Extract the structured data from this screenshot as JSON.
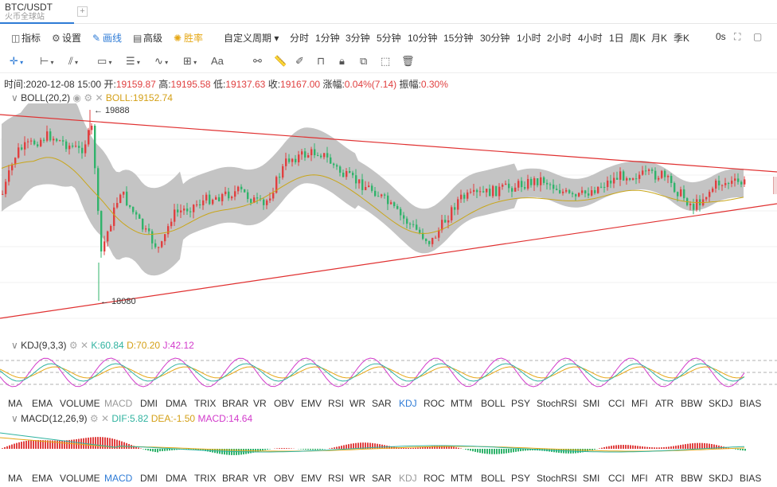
{
  "tabs": [
    {
      "title": "BTC/USDT",
      "subtitle": "火币全球站"
    }
  ],
  "toolbar": {
    "indicator": "指标",
    "settings": "设置",
    "draw": "画线",
    "advanced": "高级",
    "winrate": "胜率",
    "custom_period": "自定义周期",
    "periods": [
      "分时",
      "1分钟",
      "3分钟",
      "5分钟",
      "10分钟",
      "15分钟",
      "30分钟",
      "1小时",
      "2小时",
      "4小时",
      "1日",
      "周K",
      "月K",
      "季K"
    ],
    "active_period": "1小时",
    "countdown": "0s"
  },
  "info": {
    "time_label": "时间:",
    "time": "2020-12-08 15:00",
    "open_label": "开:",
    "open": "19159.87",
    "high_label": "高:",
    "high": "19195.58",
    "low_label": "低:",
    "low": "19137.63",
    "close_label": "收:",
    "close": "19167.00",
    "change_label": "涨幅:",
    "change": "0.04%(7.14)",
    "amp_label": "振幅:",
    "amp": "0.30%"
  },
  "boll": {
    "name": "BOLL(20,2)",
    "value": "BOLL:19152.74",
    "max_label": "← 19888",
    "min_label": "← 18080"
  },
  "kdj": {
    "name": "KDJ(9,3,3)",
    "k": "K:60.84",
    "d": "D:70.20",
    "j": "J:42.12"
  },
  "macd": {
    "name": "MACD(12,26,9)",
    "dif": "DIF:5.82",
    "dea": "DEA:-1.50",
    "macd": "MACD:14.64"
  },
  "indicators": [
    "MA",
    "EMA",
    "VOLUME",
    "MACD",
    "DMI",
    "DMA",
    "TRIX",
    "BRAR",
    "VR",
    "OBV",
    "EMV",
    "RSI",
    "WR",
    "SAR",
    "KDJ",
    "ROC",
    "MTM",
    "BOLL",
    "PSY",
    "StochRSI",
    "SMI",
    "CCI",
    "MFI",
    "ATR",
    "BBW",
    "SKDJ",
    "BIAS"
  ],
  "indicator_row1_active": "KDJ",
  "indicator_row1_muted": "MACD",
  "indicator_row2_active": "MACD",
  "indicator_row2_muted": "KDJ",
  "colors": {
    "up": "#e04040",
    "down": "#30b36b",
    "accent": "#2e7bd6",
    "band": "#c4c4c4",
    "boll_mid": "#c9a61a",
    "trendline": "#e03030"
  }
}
